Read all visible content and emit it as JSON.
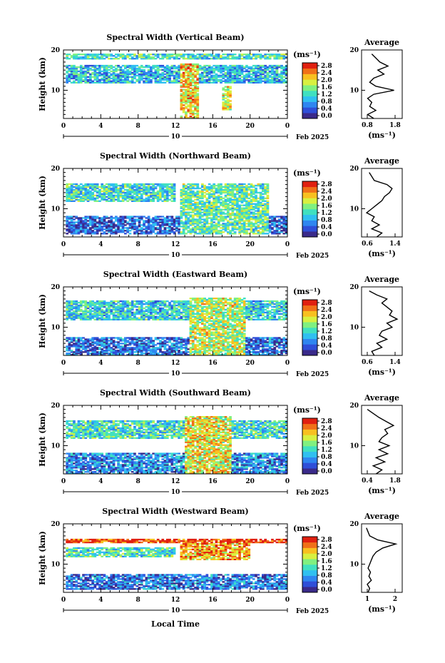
{
  "figure": {
    "xlabel": "Local Time",
    "date_label": "Feb 2025",
    "day_label": "10",
    "colorbar_unit": "(ms⁻¹)",
    "colorbar_ticks": [
      "0.0",
      "0.4",
      "0.8",
      "1.2",
      "1.6",
      "2.0",
      "2.4",
      "2.8"
    ],
    "average_title": "Average",
    "average_xlabel": "(ms⁻¹)",
    "ylabel": "Height (km)"
  },
  "chart_data": [
    {
      "type": "heatmap",
      "title": "Spectral Width (Vertical Beam)",
      "ylabel": "Height (km)",
      "x_ticks": [
        "0",
        "4",
        "8",
        "12",
        "16",
        "20",
        "0"
      ],
      "xlim": [
        0,
        24
      ],
      "ylim": [
        3,
        20
      ],
      "y_ticks": [
        "10",
        "20"
      ],
      "color_range": [
        0.0,
        2.8
      ],
      "colorscale": [
        "#3a2a8a",
        "#2f4fd8",
        "#2f86f0",
        "#30c0f0",
        "#40e0c0",
        "#80f080",
        "#d8f040",
        "#f8c020",
        "#f07018",
        "#e02010"
      ],
      "bands": [
        {
          "t0": 0.2,
          "t1": 23.8,
          "h0": 17.5,
          "h1": 18.8,
          "level": 1.3
        },
        {
          "t0": 0.2,
          "t1": 23.8,
          "h0": 11.5,
          "h1": 16.0,
          "level": 1.0
        },
        {
          "t0": 12.5,
          "t1": 14.5,
          "h0": 3.0,
          "h1": 16.5,
          "level": 2.0
        },
        {
          "t0": 17.0,
          "t1": 17.8,
          "h0": 5.0,
          "h1": 11.0,
          "level": 1.8
        }
      ],
      "average": {
        "xlim": [
          0.8,
          1.8
        ],
        "x_ticks": [
          "0.8",
          "1.8"
        ],
        "height": [
          3,
          4,
          5,
          6,
          7,
          8,
          9,
          10,
          11,
          12,
          13,
          14,
          15,
          16,
          17,
          18,
          19
        ],
        "value": [
          1.1,
          0.95,
          1.15,
          1.0,
          1.05,
          0.95,
          1.1,
          1.6,
          1.15,
          1.0,
          1.1,
          1.35,
          1.2,
          1.45,
          1.25,
          1.15,
          1.05
        ]
      }
    },
    {
      "type": "heatmap",
      "title": "Spectral Width (Northward Beam)",
      "ylabel": "Height (km)",
      "x_ticks": [
        "0",
        "4",
        "8",
        "12",
        "16",
        "20",
        "0"
      ],
      "xlim": [
        0,
        24
      ],
      "ylim": [
        3,
        20
      ],
      "y_ticks": [
        "10",
        "20"
      ],
      "color_range": [
        0.0,
        2.8
      ],
      "colorscale": [
        "#3a2a8a",
        "#2f4fd8",
        "#2f86f0",
        "#30c0f0",
        "#40e0c0",
        "#80f080",
        "#d8f040",
        "#f8c020",
        "#f07018",
        "#e02010"
      ],
      "bands": [
        {
          "t0": 0.2,
          "t1": 11.8,
          "h0": 11.5,
          "h1": 16.0,
          "level": 1.2
        },
        {
          "t0": 0.2,
          "t1": 23.8,
          "h0": 3.5,
          "h1": 8.0,
          "level": 0.5
        },
        {
          "t0": 12.5,
          "t1": 22.0,
          "h0": 3.5,
          "h1": 16.0,
          "level": 1.4
        }
      ],
      "average": {
        "xlim": [
          0.6,
          1.4
        ],
        "x_ticks": [
          "0.6",
          "1.4"
        ],
        "height": [
          3,
          4,
          5,
          6,
          7,
          8,
          9,
          10,
          11,
          12,
          13,
          14,
          15,
          16,
          17,
          18,
          19
        ],
        "value": [
          0.9,
          1.0,
          0.8,
          0.95,
          0.8,
          0.85,
          0.7,
          0.8,
          0.9,
          1.0,
          1.05,
          1.15,
          1.2,
          1.1,
          0.85,
          0.8,
          0.75
        ]
      }
    },
    {
      "type": "heatmap",
      "title": "Spectral Width (Eastward Beam)",
      "ylabel": "Height (km)",
      "x_ticks": [
        "0",
        "4",
        "8",
        "12",
        "16",
        "20",
        "0"
      ],
      "xlim": [
        0,
        24
      ],
      "ylim": [
        3,
        20
      ],
      "y_ticks": [
        "10",
        "20"
      ],
      "color_range": [
        0.0,
        2.8
      ],
      "colorscale": [
        "#3a2a8a",
        "#2f4fd8",
        "#2f86f0",
        "#30c0f0",
        "#40e0c0",
        "#80f080",
        "#d8f040",
        "#f8c020",
        "#f07018",
        "#e02010"
      ],
      "bands": [
        {
          "t0": 0.2,
          "t1": 23.8,
          "h0": 11.5,
          "h1": 16.5,
          "level": 1.1
        },
        {
          "t0": 0.2,
          "t1": 23.8,
          "h0": 3.0,
          "h1": 7.5,
          "level": 0.6
        },
        {
          "t0": 13.5,
          "t1": 19.5,
          "h0": 3.0,
          "h1": 17.0,
          "level": 1.7
        }
      ],
      "average": {
        "xlim": [
          0.6,
          1.4
        ],
        "x_ticks": [
          "0.6",
          "1.4"
        ],
        "height": [
          3,
          4,
          5,
          6,
          7,
          8,
          9,
          10,
          11,
          12,
          13,
          14,
          15,
          16,
          17,
          18,
          19
        ],
        "value": [
          0.85,
          0.8,
          1.0,
          0.9,
          1.1,
          0.95,
          1.0,
          1.2,
          1.1,
          1.3,
          1.15,
          1.2,
          1.1,
          1.0,
          1.1,
          0.9,
          0.75
        ]
      }
    },
    {
      "type": "heatmap",
      "title": "Spectral Width (Southward Beam)",
      "ylabel": "Height (km)",
      "x_ticks": [
        "0",
        "4",
        "8",
        "12",
        "16",
        "20",
        "0"
      ],
      "xlim": [
        0,
        24
      ],
      "ylim": [
        3,
        20
      ],
      "y_ticks": [
        "10",
        "20"
      ],
      "color_range": [
        0.0,
        2.8
      ],
      "colorscale": [
        "#3a2a8a",
        "#2f4fd8",
        "#2f86f0",
        "#30c0f0",
        "#40e0c0",
        "#80f080",
        "#d8f040",
        "#f8c020",
        "#f07018",
        "#e02010"
      ],
      "bands": [
        {
          "t0": 0.2,
          "t1": 23.8,
          "h0": 11.5,
          "h1": 16.0,
          "level": 1.2
        },
        {
          "t0": 0.2,
          "t1": 23.8,
          "h0": 3.0,
          "h1": 8.0,
          "level": 0.7
        },
        {
          "t0": 13.0,
          "t1": 18.0,
          "h0": 3.0,
          "h1": 17.0,
          "level": 1.9
        }
      ],
      "average": {
        "xlim": [
          0.4,
          1.8
        ],
        "x_ticks": [
          "0.4",
          "1.8"
        ],
        "height": [
          3,
          4,
          5,
          6,
          7,
          8,
          9,
          10,
          11,
          12,
          13,
          14,
          15,
          16,
          17,
          18,
          19
        ],
        "value": [
          0.9,
          1.1,
          0.8,
          1.2,
          0.9,
          1.3,
          1.0,
          1.35,
          1.0,
          1.1,
          1.3,
          1.2,
          1.5,
          1.25,
          1.0,
          0.8,
          0.6
        ]
      }
    },
    {
      "type": "heatmap",
      "title": "Spectral Width (Westward Beam)",
      "ylabel": "Height (km)",
      "x_ticks": [
        "0",
        "4",
        "8",
        "12",
        "16",
        "20",
        "0"
      ],
      "xlim": [
        0,
        24
      ],
      "ylim": [
        3,
        20
      ],
      "y_ticks": [
        "10",
        "20"
      ],
      "color_range": [
        0.0,
        2.8
      ],
      "colorscale": [
        "#3a2a8a",
        "#2f4fd8",
        "#2f86f0",
        "#30c0f0",
        "#40e0c0",
        "#80f080",
        "#d8f040",
        "#f8c020",
        "#f07018",
        "#e02010"
      ],
      "bands": [
        {
          "t0": 0.2,
          "t1": 23.8,
          "h0": 15.0,
          "h1": 16.0,
          "level": 2.6
        },
        {
          "t0": 0.2,
          "t1": 12.0,
          "h0": 11.5,
          "h1": 14.0,
          "level": 1.3
        },
        {
          "t0": 12.5,
          "t1": 20.0,
          "h0": 11.0,
          "h1": 15.0,
          "level": 2.2
        },
        {
          "t0": 0.2,
          "t1": 23.8,
          "h0": 3.5,
          "h1": 7.5,
          "level": 0.6
        }
      ],
      "average": {
        "xlim": [
          0.5,
          3.0
        ],
        "x_ticks": [
          "1",
          "2"
        ],
        "height": [
          3,
          4,
          5,
          6,
          7,
          8,
          9,
          10,
          11,
          12,
          13,
          14,
          15,
          16,
          17,
          18,
          19
        ],
        "value": [
          0.9,
          1.0,
          0.85,
          1.1,
          0.95,
          1.05,
          0.9,
          1.0,
          1.1,
          1.2,
          1.4,
          1.8,
          2.6,
          1.5,
          1.0,
          0.9,
          0.8
        ]
      }
    }
  ]
}
